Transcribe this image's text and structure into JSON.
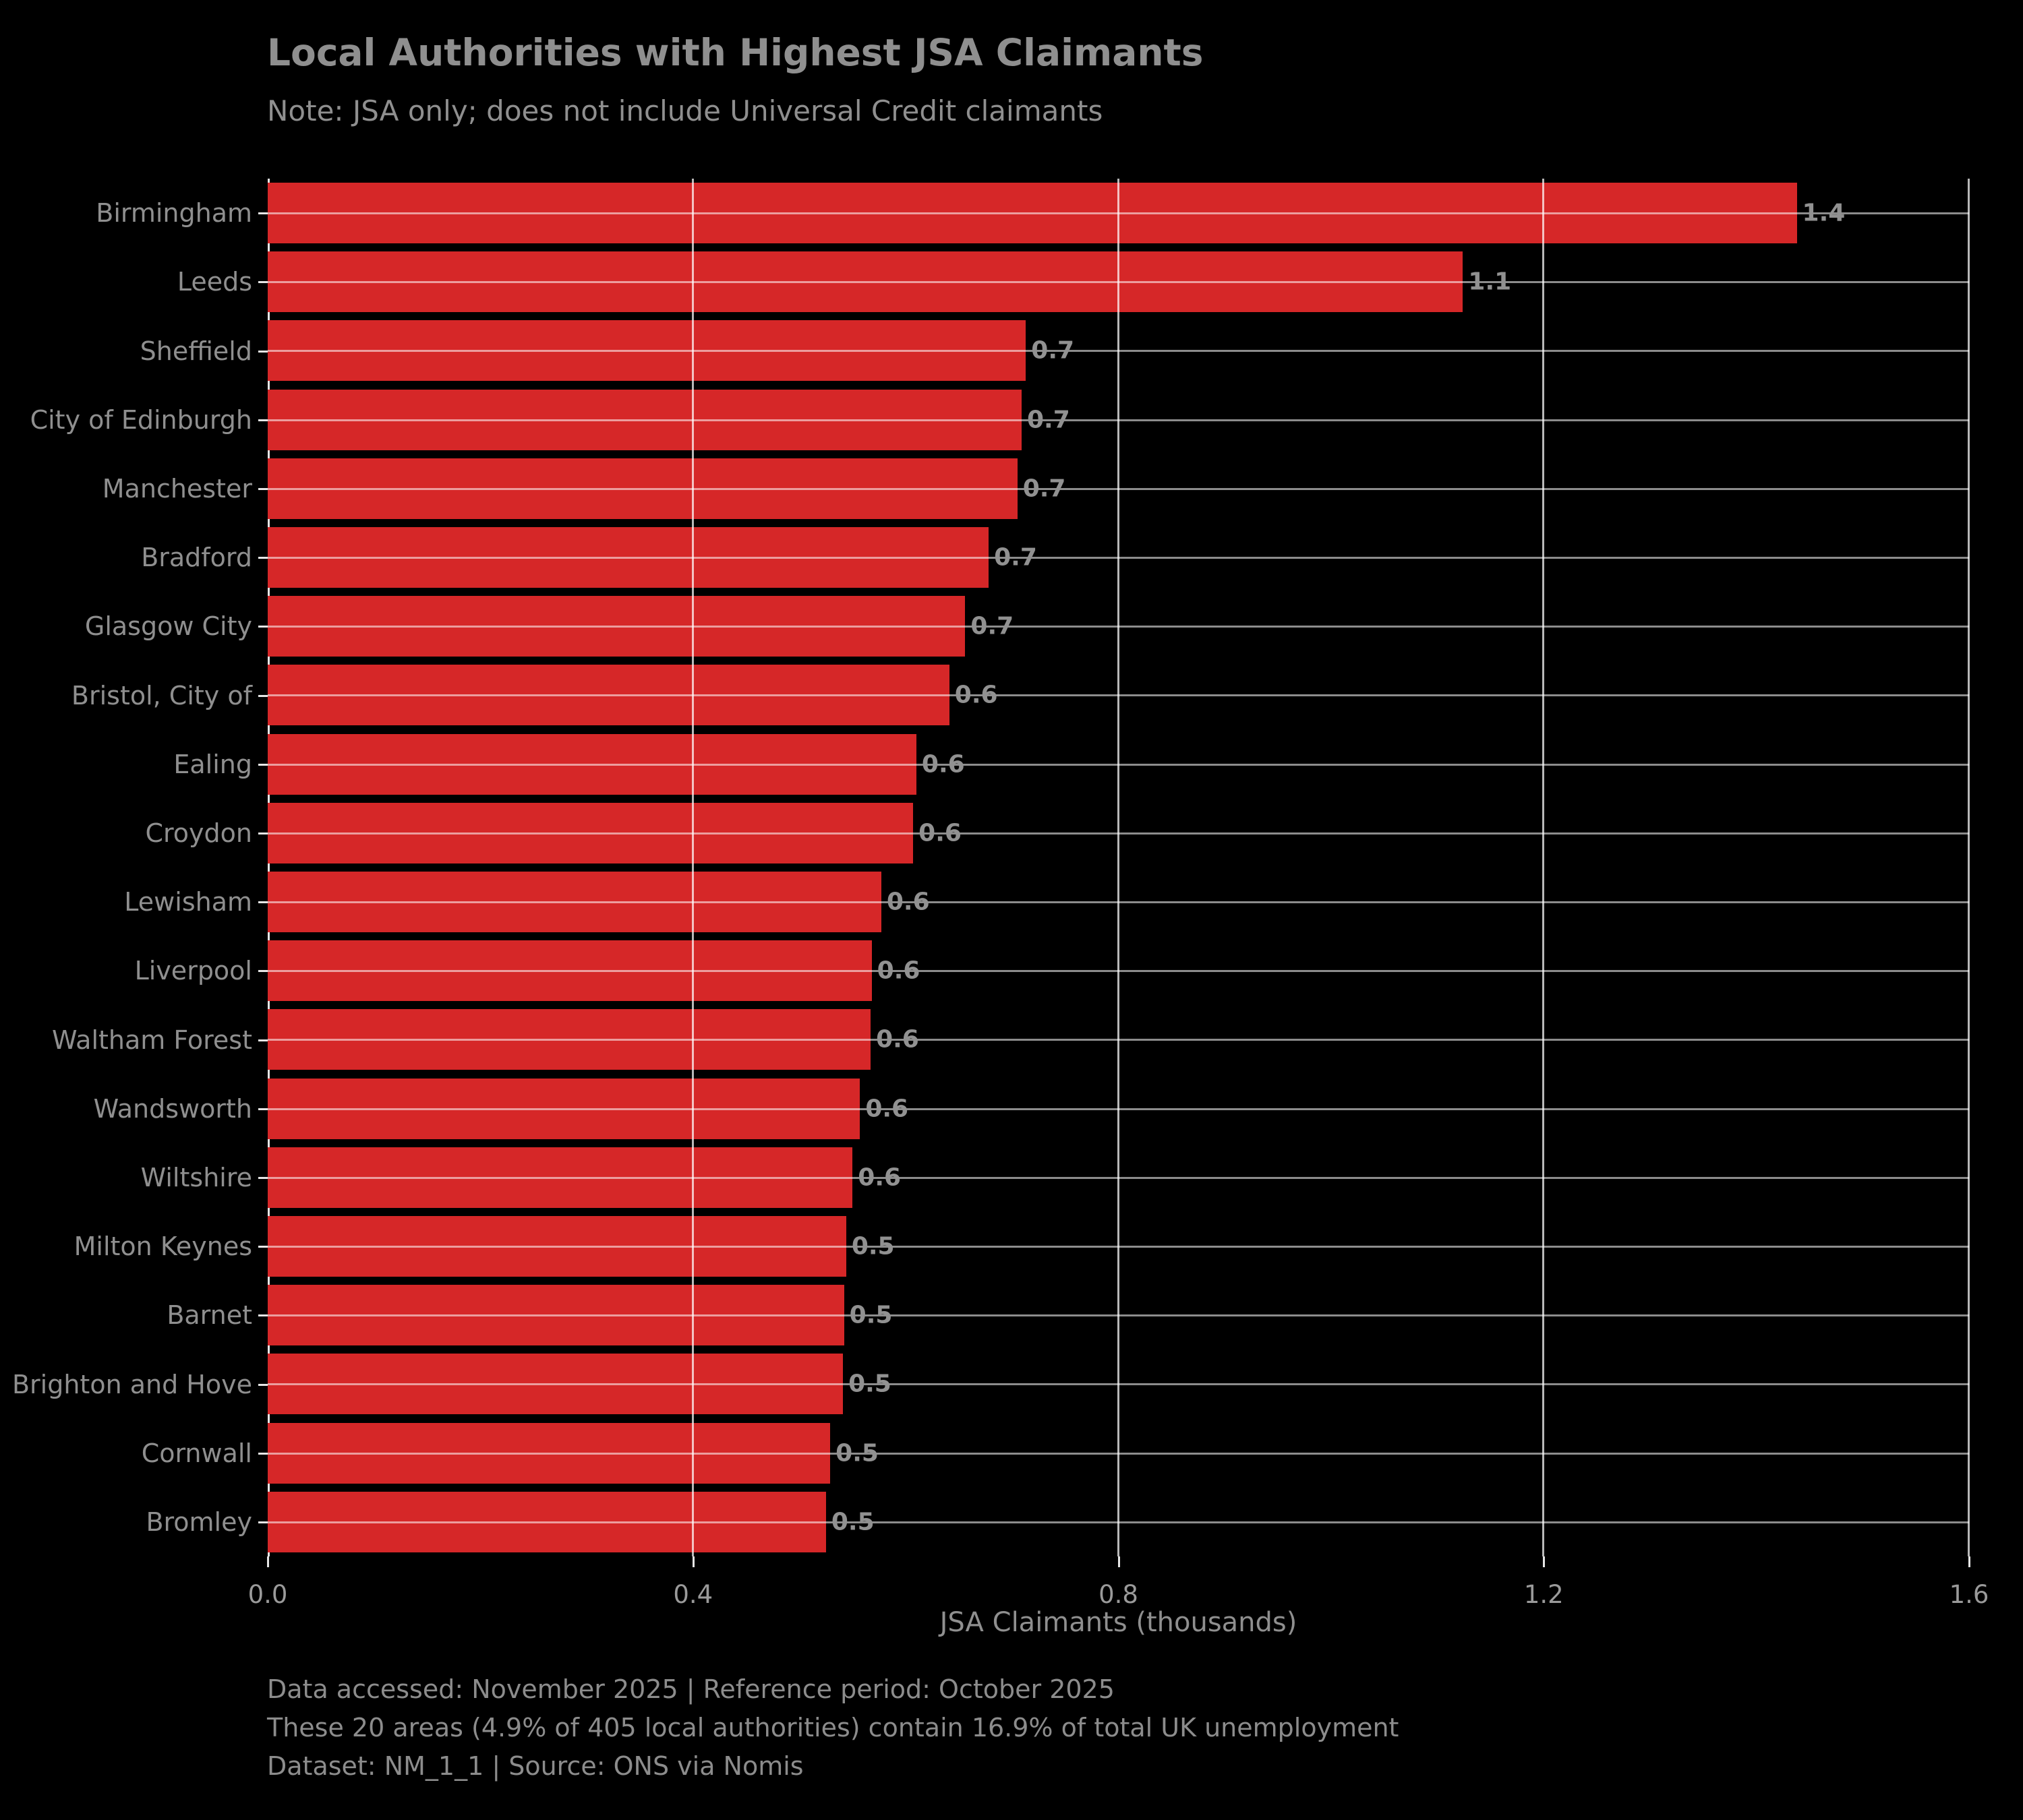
{
  "chart_data": {
    "type": "bar",
    "orientation": "horizontal",
    "title": "Local Authorities with Highest JSA Claimants",
    "subtitle": "Note: JSA only; does not include Universal Credit claimants",
    "xlabel": "JSA Claimants (thousands)",
    "ylabel": "",
    "xlim": [
      0.0,
      1.6
    ],
    "xtick_labels": [
      "0.0",
      "0.4",
      "0.8",
      "1.2",
      "1.6"
    ],
    "xtick_values": [
      0.0,
      0.4,
      0.8,
      1.2,
      1.6
    ],
    "grid": true,
    "legend_position": "none",
    "bar_color": "#d62728",
    "background_color": "#000000",
    "text_color": "#8f8f8f",
    "categories": [
      "Birmingham",
      "Leeds",
      "Sheffield",
      "City of Edinburgh",
      "Manchester",
      "Bradford",
      "Glasgow City",
      "Bristol, City of",
      "Ealing",
      "Croydon",
      "Lewisham",
      "Liverpool",
      "Waltham Forest",
      "Wandsworth",
      "Wiltshire",
      "Milton Keynes",
      "Barnet",
      "Brighton and Hove",
      "Cornwall",
      "Bromley"
    ],
    "values": [
      1.438,
      1.124,
      0.713,
      0.709,
      0.705,
      0.678,
      0.656,
      0.641,
      0.61,
      0.607,
      0.577,
      0.568,
      0.567,
      0.557,
      0.55,
      0.544,
      0.542,
      0.541,
      0.529,
      0.525
    ],
    "bar_labels": [
      "1.4",
      "1.1",
      "0.7",
      "0.7",
      "0.7",
      "0.7",
      "0.7",
      "0.6",
      "0.6",
      "0.6",
      "0.6",
      "0.6",
      "0.6",
      "0.6",
      "0.6",
      "0.5",
      "0.5",
      "0.5",
      "0.5",
      "0.5"
    ],
    "footer_lines": [
      "Data accessed: November 2025 | Reference period: October 2025",
      "These 20 areas (4.9% of 405 local authorities) contain 16.9% of total UK unemployment",
      "Dataset: NM_1_1 | Source: ONS via Nomis"
    ]
  }
}
